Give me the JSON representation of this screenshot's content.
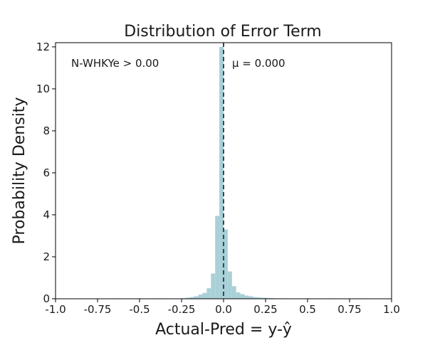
{
  "chart_data": {
    "type": "bar",
    "title": "Distribution of Error Term",
    "xlabel": "Actual-Pred = y-ŷ",
    "ylabel": "Probability Density",
    "xlim": [
      -1.0,
      1.0
    ],
    "ylim": [
      0,
      12.2
    ],
    "x_ticks": [
      -1.0,
      -0.75,
      -0.5,
      -0.25,
      0.0,
      0.25,
      0.5,
      0.75,
      1.0
    ],
    "x_tick_labels": [
      "-1.0",
      "-0.75",
      "-0.5",
      "-0.25",
      "0.0",
      "0.25",
      "0.5",
      "0.75",
      "1.0"
    ],
    "y_ticks": [
      0,
      2,
      4,
      6,
      8,
      10,
      12
    ],
    "y_tick_labels": [
      "0",
      "2",
      "4",
      "6",
      "8",
      "10",
      "12"
    ],
    "grid": false,
    "bar_color": "#a8d0d6",
    "mean_line_color": "#2b4a66",
    "mean_value": 0.0,
    "bin_width": 0.025,
    "bins": [
      {
        "x0": -0.65,
        "x1": -0.625,
        "density": 0.02
      },
      {
        "x0": -0.5,
        "x1": -0.475,
        "density": 0.02
      },
      {
        "x0": -0.4,
        "x1": -0.375,
        "density": 0.02
      },
      {
        "x0": -0.25,
        "x1": -0.225,
        "density": 0.03
      },
      {
        "x0": -0.225,
        "x1": -0.2,
        "density": 0.05
      },
      {
        "x0": -0.2,
        "x1": -0.175,
        "density": 0.08
      },
      {
        "x0": -0.175,
        "x1": -0.15,
        "density": 0.12
      },
      {
        "x0": -0.15,
        "x1": -0.125,
        "density": 0.2
      },
      {
        "x0": -0.125,
        "x1": -0.1,
        "density": 0.28
      },
      {
        "x0": -0.1,
        "x1": -0.075,
        "density": 0.5
      },
      {
        "x0": -0.075,
        "x1": -0.05,
        "density": 1.2
      },
      {
        "x0": -0.05,
        "x1": -0.025,
        "density": 3.95
      },
      {
        "x0": -0.025,
        "x1": 0.0,
        "density": 12.0
      },
      {
        "x0": 0.0,
        "x1": 0.025,
        "density": 3.3
      },
      {
        "x0": 0.025,
        "x1": 0.05,
        "density": 1.3
      },
      {
        "x0": 0.05,
        "x1": 0.075,
        "density": 0.6
      },
      {
        "x0": 0.075,
        "x1": 0.1,
        "density": 0.3
      },
      {
        "x0": 0.1,
        "x1": 0.125,
        "density": 0.22
      },
      {
        "x0": 0.125,
        "x1": 0.15,
        "density": 0.15
      },
      {
        "x0": 0.15,
        "x1": 0.175,
        "density": 0.12
      },
      {
        "x0": 0.175,
        "x1": 0.2,
        "density": 0.08
      },
      {
        "x0": 0.2,
        "x1": 0.225,
        "density": 0.06
      },
      {
        "x0": 0.225,
        "x1": 0.25,
        "density": 0.05
      },
      {
        "x0": 0.25,
        "x1": 0.275,
        "density": 0.04
      },
      {
        "x0": 0.275,
        "x1": 0.3,
        "density": 0.03
      },
      {
        "x0": 0.3,
        "x1": 0.325,
        "density": 0.02
      },
      {
        "x0": 0.325,
        "x1": 0.35,
        "density": 0.02
      },
      {
        "x0": 0.35,
        "x1": 0.375,
        "density": 0.02
      },
      {
        "x0": 0.5,
        "x1": 0.525,
        "density": 0.02
      },
      {
        "x0": 0.625,
        "x1": 0.65,
        "density": 0.02
      },
      {
        "x0": 0.8,
        "x1": 0.825,
        "density": 0.02
      }
    ],
    "annotations": {
      "left": "N-WHKYe > 0.00",
      "right": "μ = 0.000"
    }
  }
}
